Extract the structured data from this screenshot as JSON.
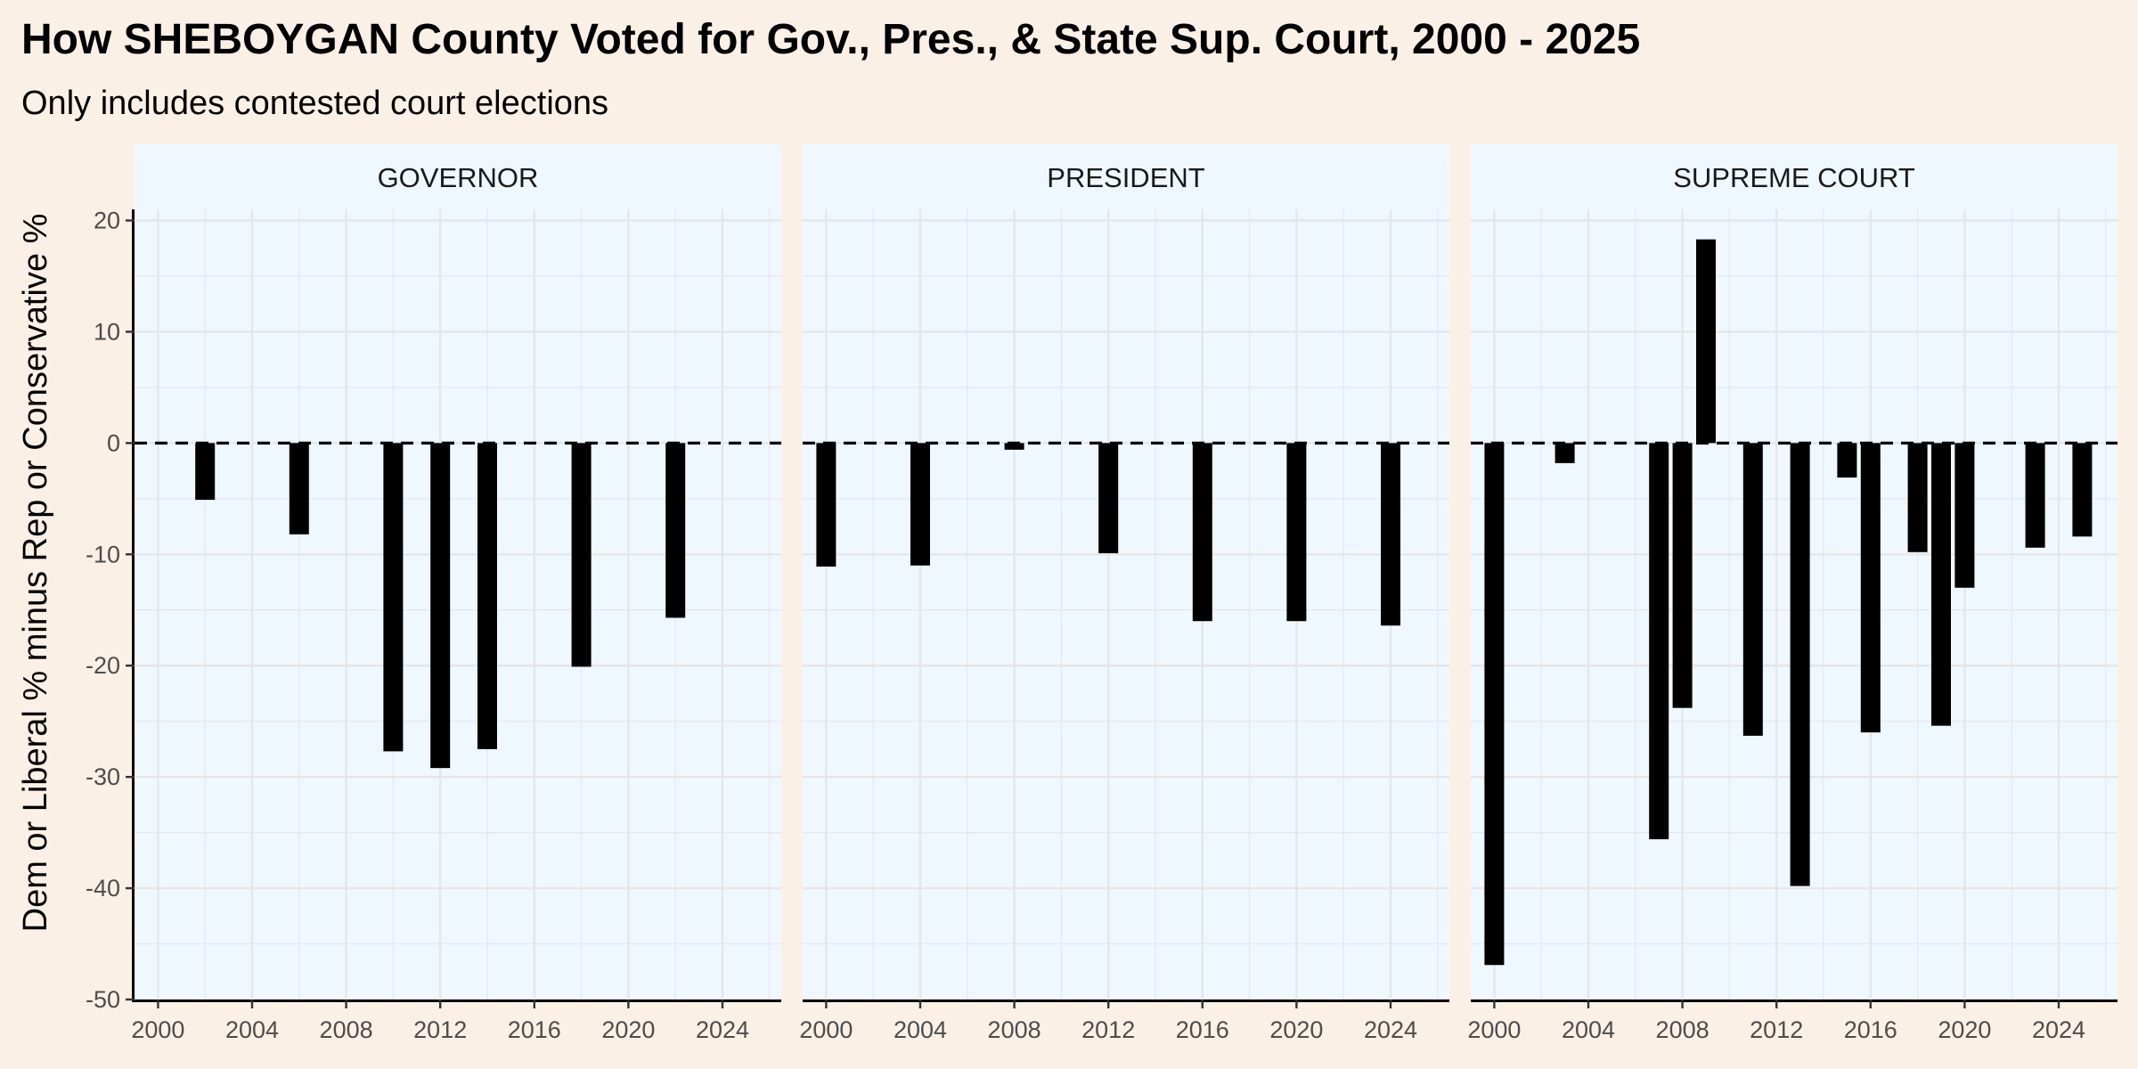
{
  "title": "How SHEBOYGAN County Voted for Gov., Pres., & State Sup. Court, 2000 - 2025",
  "subtitle": "Only includes contested court elections",
  "colors": {
    "background": "#FBF0E6",
    "panel": "#F0F8FF",
    "strip": "#F0F8FF",
    "bar": "#000000",
    "grid": "#E6E6E6"
  },
  "chart_data": {
    "type": "bar",
    "title": "How SHEBOYGAN County Voted for Gov., Pres., & State Sup. Court, 2000 - 2025",
    "subtitle": "Only includes contested court elections",
    "xlabel": "",
    "ylabel": "Dem or Liberal % minus Rep or Conservative %",
    "ylim": [
      -50,
      21
    ],
    "xlim": [
      1999,
      2026.5
    ],
    "x_ticks": [
      2000,
      2004,
      2008,
      2012,
      2016,
      2020,
      2024
    ],
    "y_ticks": [
      -50,
      -40,
      -30,
      -20,
      -10,
      0,
      10,
      20
    ],
    "reference_line": {
      "y": 0,
      "style": "dashed"
    },
    "grid": true,
    "facets": [
      {
        "name": "GOVERNOR",
        "points": [
          {
            "x": 2002,
            "y": -5.1
          },
          {
            "x": 2006,
            "y": -8.2
          },
          {
            "x": 2010,
            "y": -27.7
          },
          {
            "x": 2012,
            "y": -29.2
          },
          {
            "x": 2014,
            "y": -27.5
          },
          {
            "x": 2018,
            "y": -20.1
          },
          {
            "x": 2022,
            "y": -15.7
          }
        ]
      },
      {
        "name": "PRESIDENT",
        "points": [
          {
            "x": 2000,
            "y": -11.1
          },
          {
            "x": 2004,
            "y": -11.0
          },
          {
            "x": 2008,
            "y": -0.6
          },
          {
            "x": 2012,
            "y": -9.9
          },
          {
            "x": 2016,
            "y": -16.0
          },
          {
            "x": 2020,
            "y": -16.0
          },
          {
            "x": 2024,
            "y": -16.4
          }
        ]
      },
      {
        "name": "SUPREME COURT",
        "points": [
          {
            "x": 2000,
            "y": -46.9
          },
          {
            "x": 2003,
            "y": -1.8
          },
          {
            "x": 2007,
            "y": -35.6
          },
          {
            "x": 2008,
            "y": -23.8
          },
          {
            "x": 2009,
            "y": 18.3
          },
          {
            "x": 2011,
            "y": -26.3
          },
          {
            "x": 2013,
            "y": -39.8
          },
          {
            "x": 2015,
            "y": -3.1
          },
          {
            "x": 2016,
            "y": -26.0
          },
          {
            "x": 2018,
            "y": -9.8
          },
          {
            "x": 2019,
            "y": -25.4
          },
          {
            "x": 2020,
            "y": -13.0
          },
          {
            "x": 2023,
            "y": -9.4
          },
          {
            "x": 2025,
            "y": -8.4
          }
        ]
      }
    ]
  }
}
